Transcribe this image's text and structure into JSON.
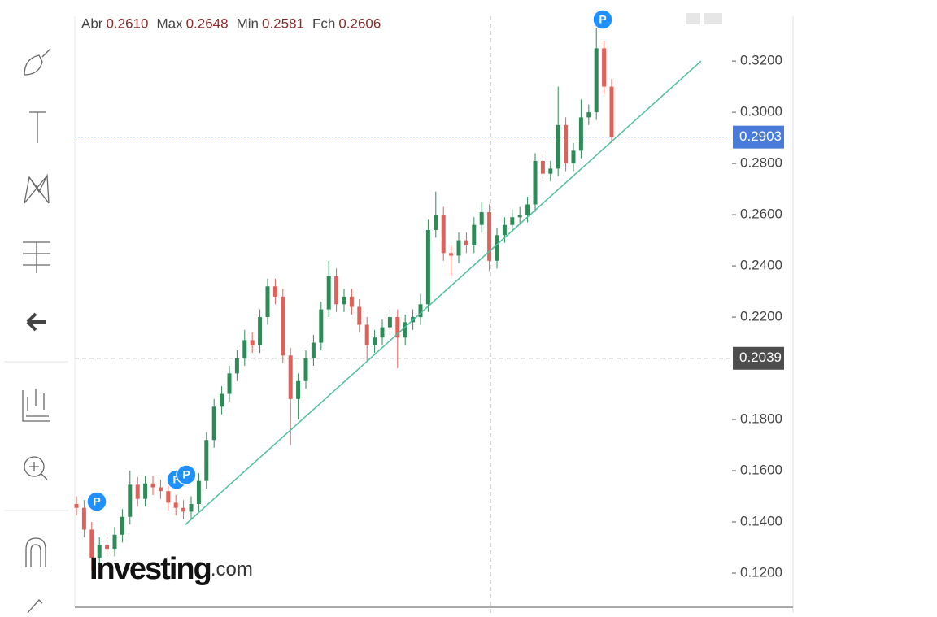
{
  "chart_data": {
    "type": "candlestick",
    "header": [
      {
        "label": "Abr",
        "value": "0.2610"
      },
      {
        "label": "Max",
        "value": "0.2648"
      },
      {
        "label": "Min",
        "value": "0.2581"
      },
      {
        "label": "Fch",
        "value": "0.2606"
      }
    ],
    "open": [
      0.147,
      0.1455,
      0.137,
      0.126,
      0.131,
      0.1295,
      0.135,
      0.142,
      0.1545,
      0.149,
      0.155,
      0.1535,
      0.152,
      0.1475,
      0.1455,
      0.144,
      0.147,
      0.156,
      0.172,
      0.185,
      0.19,
      0.198,
      0.204,
      0.211,
      0.209,
      0.22,
      0.232,
      0.228,
      0.205,
      0.188,
      0.195,
      0.204,
      0.21,
      0.223,
      0.236,
      0.225,
      0.228,
      0.224,
      0.217,
      0.209,
      0.212,
      0.216,
      0.22,
      0.212,
      0.218,
      0.22,
      0.225,
      0.254,
      0.26,
      0.245,
      0.244,
      0.25,
      0.248,
      0.256,
      0.261,
      0.242,
      0.252,
      0.256,
      0.259,
      0.26,
      0.264,
      0.281,
      0.276,
      0.278,
      0.295,
      0.28,
      0.285,
      0.298,
      0.3,
      0.325,
      0.31
    ],
    "high": [
      0.15,
      0.1485,
      0.14,
      0.134,
      0.134,
      0.138,
      0.145,
      0.16,
      0.1575,
      0.158,
      0.158,
      0.1565,
      0.155,
      0.1505,
      0.1485,
      0.15,
      0.159,
      0.175,
      0.188,
      0.193,
      0.201,
      0.207,
      0.215,
      0.214,
      0.223,
      0.235,
      0.235,
      0.231,
      0.208,
      0.198,
      0.207,
      0.213,
      0.226,
      0.242,
      0.239,
      0.231,
      0.231,
      0.227,
      0.22,
      0.215,
      0.219,
      0.223,
      0.223,
      0.221,
      0.223,
      0.229,
      0.258,
      0.269,
      0.263,
      0.248,
      0.253,
      0.253,
      0.259,
      0.265,
      0.264,
      0.255,
      0.259,
      0.262,
      0.263,
      0.267,
      0.284,
      0.284,
      0.281,
      0.31,
      0.298,
      0.288,
      0.305,
      0.303,
      0.333,
      0.328,
      0.313
    ],
    "low": [
      0.1425,
      0.134,
      0.121,
      0.123,
      0.1265,
      0.1265,
      0.132,
      0.139,
      0.146,
      0.146,
      0.1505,
      0.149,
      0.1445,
      0.1425,
      0.141,
      0.141,
      0.144,
      0.153,
      0.169,
      0.182,
      0.187,
      0.195,
      0.201,
      0.206,
      0.206,
      0.217,
      0.225,
      0.202,
      0.17,
      0.18,
      0.192,
      0.201,
      0.207,
      0.22,
      0.222,
      0.222,
      0.221,
      0.214,
      0.203,
      0.206,
      0.209,
      0.213,
      0.2,
      0.209,
      0.215,
      0.217,
      0.222,
      0.251,
      0.242,
      0.236,
      0.241,
      0.245,
      0.245,
      0.253,
      0.238,
      0.239,
      0.249,
      0.253,
      0.256,
      0.257,
      0.261,
      0.273,
      0.273,
      0.275,
      0.277,
      0.277,
      0.282,
      0.295,
      0.297,
      0.307,
      0.288
    ],
    "close": [
      0.1455,
      0.137,
      0.126,
      0.131,
      0.1295,
      0.135,
      0.142,
      0.1545,
      0.149,
      0.155,
      0.1535,
      0.152,
      0.1475,
      0.1455,
      0.144,
      0.147,
      0.156,
      0.172,
      0.185,
      0.19,
      0.198,
      0.204,
      0.211,
      0.209,
      0.22,
      0.232,
      0.228,
      0.205,
      0.188,
      0.195,
      0.204,
      0.21,
      0.223,
      0.236,
      0.225,
      0.228,
      0.224,
      0.217,
      0.209,
      0.212,
      0.216,
      0.22,
      0.212,
      0.218,
      0.22,
      0.225,
      0.254,
      0.26,
      0.245,
      0.244,
      0.25,
      0.248,
      0.256,
      0.261,
      0.242,
      0.252,
      0.256,
      0.259,
      0.26,
      0.264,
      0.281,
      0.276,
      0.278,
      0.295,
      0.28,
      0.285,
      0.298,
      0.3,
      0.325,
      0.31,
      0.2903
    ],
    "up_color": "#2e8b57",
    "down_color": "#e0605a",
    "ylim": [
      0.1073,
      0.3375
    ],
    "yticks": [
      {
        "value": 0.12,
        "label": "0.1200"
      },
      {
        "value": 0.14,
        "label": "0.1400"
      },
      {
        "value": 0.16,
        "label": "0.1600"
      },
      {
        "value": 0.18,
        "label": "0.1800"
      },
      {
        "value": 0.22,
        "label": "0.2200"
      },
      {
        "value": 0.24,
        "label": "0.2400"
      },
      {
        "value": 0.26,
        "label": "0.2600"
      },
      {
        "value": 0.28,
        "label": "0.2800"
      },
      {
        "value": 0.3,
        "label": "0.3000"
      },
      {
        "value": 0.32,
        "label": "0.3200"
      }
    ],
    "last_price": 0.2903,
    "last_price_color": "#4a7bd8",
    "crosshair_price": 0.2039,
    "trendline": {
      "values": [
        0.139,
        0.32
      ],
      "color": "#4fbf9f"
    },
    "event_marker": "P",
    "watermark": {
      "brand": "Investing",
      "suffix": ".com"
    }
  }
}
